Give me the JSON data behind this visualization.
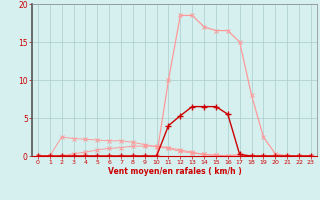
{
  "x_values": [
    0,
    1,
    2,
    3,
    4,
    5,
    6,
    7,
    8,
    9,
    10,
    11,
    12,
    13,
    14,
    15,
    16,
    17,
    18,
    19,
    20,
    21,
    22,
    23
  ],
  "line_rafales_y": [
    0.0,
    0.0,
    2.5,
    2.3,
    2.2,
    2.1,
    2.0,
    2.0,
    1.8,
    1.5,
    1.2,
    1.0,
    0.6,
    0.4,
    0.2,
    0.1,
    0.05,
    0.2,
    0.0,
    0.0,
    0.0,
    0.0,
    0.0,
    0.0
  ],
  "line_moyen_y": [
    0.0,
    0.0,
    0.0,
    0.3,
    0.5,
    0.8,
    1.0,
    1.1,
    1.3,
    1.3,
    1.3,
    1.1,
    0.8,
    0.5,
    0.2,
    0.1,
    0.05,
    0.0,
    0.0,
    0.0,
    0.0,
    0.0,
    0.0,
    0.0
  ],
  "line_mean_dark_y": [
    0.0,
    0.0,
    0.0,
    0.0,
    0.0,
    0.0,
    0.0,
    0.0,
    0.0,
    0.0,
    0.0,
    4.0,
    5.3,
    6.5,
    6.5,
    6.5,
    5.5,
    0.2,
    0.0,
    0.0,
    0.0,
    0.0,
    0.0,
    0.0
  ],
  "line_gust_light_y": [
    0.0,
    0.0,
    0.0,
    0.0,
    0.0,
    0.0,
    0.0,
    0.0,
    0.0,
    0.0,
    0.0,
    10.0,
    18.5,
    18.5,
    17.0,
    16.5,
    16.5,
    15.0,
    8.0,
    2.5,
    0.3,
    0.0,
    0.0,
    0.0
  ],
  "color_light": "#FF9999",
  "color_dark": "#CC0000",
  "background_color": "#D6F0F0",
  "grid_color": "#AACCCC",
  "tick_color": "#CC0000",
  "xlabel": "Vent moyen/en rafales ( km/h )",
  "xlim": [
    -0.5,
    23.5
  ],
  "ylim": [
    0,
    20
  ],
  "yticks": [
    0,
    5,
    10,
    15,
    20
  ],
  "xticks": [
    0,
    1,
    2,
    3,
    4,
    5,
    6,
    7,
    8,
    9,
    10,
    11,
    12,
    13,
    14,
    15,
    16,
    17,
    18,
    19,
    20,
    21,
    22,
    23
  ]
}
